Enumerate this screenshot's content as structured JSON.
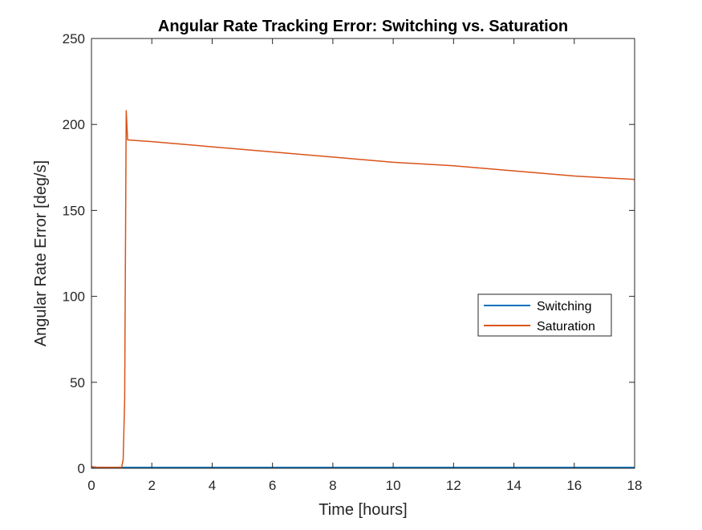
{
  "chart_data": {
    "type": "line",
    "title": "Angular Rate Tracking Error: Switching vs. Saturation",
    "xlabel": "Time [hours]",
    "ylabel": "Angular Rate Error [deg/s]",
    "xlim": [
      0,
      18
    ],
    "ylim": [
      0,
      250
    ],
    "xticks": [
      0,
      2,
      4,
      6,
      8,
      10,
      12,
      14,
      16,
      18
    ],
    "yticks": [
      0,
      50,
      100,
      150,
      200,
      250
    ],
    "grid": false,
    "legend_location": "east",
    "series": [
      {
        "name": "Switching",
        "color": "#0072BD",
        "x": [
          0,
          1,
          2,
          4,
          6,
          8,
          10,
          12,
          14,
          16,
          18
        ],
        "y": [
          0.5,
          0.5,
          0.5,
          0.5,
          0.5,
          0.5,
          0.5,
          0.5,
          0.5,
          0.5,
          0.5
        ]
      },
      {
        "name": "Saturation",
        "color": "#D95319",
        "x": [
          0,
          0.2,
          0.5,
          0.8,
          1.0,
          1.05,
          1.1,
          1.15,
          1.2,
          2,
          4,
          6,
          8,
          10,
          12,
          14,
          16,
          18
        ],
        "y": [
          1,
          0.5,
          0.5,
          0.5,
          0.5,
          5,
          40,
          208,
          191,
          190,
          187,
          184,
          181,
          178,
          176,
          173,
          170,
          168
        ]
      }
    ]
  }
}
